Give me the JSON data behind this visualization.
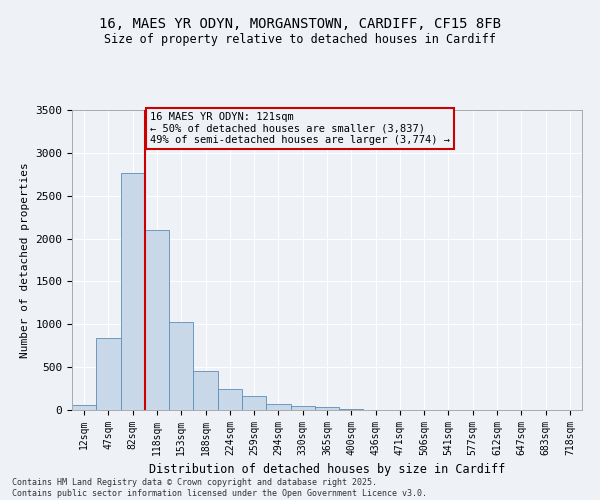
{
  "title_line1": "16, MAES YR ODYN, MORGANSTOWN, CARDIFF, CF15 8FB",
  "title_line2": "Size of property relative to detached houses in Cardiff",
  "xlabel": "Distribution of detached houses by size in Cardiff",
  "ylabel": "Number of detached properties",
  "categories": [
    "12sqm",
    "47sqm",
    "82sqm",
    "118sqm",
    "153sqm",
    "188sqm",
    "224sqm",
    "259sqm",
    "294sqm",
    "330sqm",
    "365sqm",
    "400sqm",
    "436sqm",
    "471sqm",
    "506sqm",
    "541sqm",
    "577sqm",
    "612sqm",
    "647sqm",
    "683sqm",
    "718sqm"
  ],
  "bar_heights": [
    55,
    840,
    2760,
    2100,
    1030,
    450,
    250,
    160,
    65,
    45,
    30,
    15,
    5,
    5,
    2,
    0,
    0,
    0,
    0,
    0,
    0
  ],
  "bar_color": "#c8d8e8",
  "bar_edge_color": "#5b8db8",
  "vline_x": 2.5,
  "vline_color": "#cc0000",
  "annotation_text": "16 MAES YR ODYN: 121sqm\n← 50% of detached houses are smaller (3,837)\n49% of semi-detached houses are larger (3,774) →",
  "annotation_box_color": "#cc0000",
  "ylim": [
    0,
    3500
  ],
  "yticks": [
    0,
    500,
    1000,
    1500,
    2000,
    2500,
    3000,
    3500
  ],
  "background_color": "#eef2f7",
  "grid_color": "#ffffff",
  "footnote": "Contains HM Land Registry data © Crown copyright and database right 2025.\nContains public sector information licensed under the Open Government Licence v3.0."
}
